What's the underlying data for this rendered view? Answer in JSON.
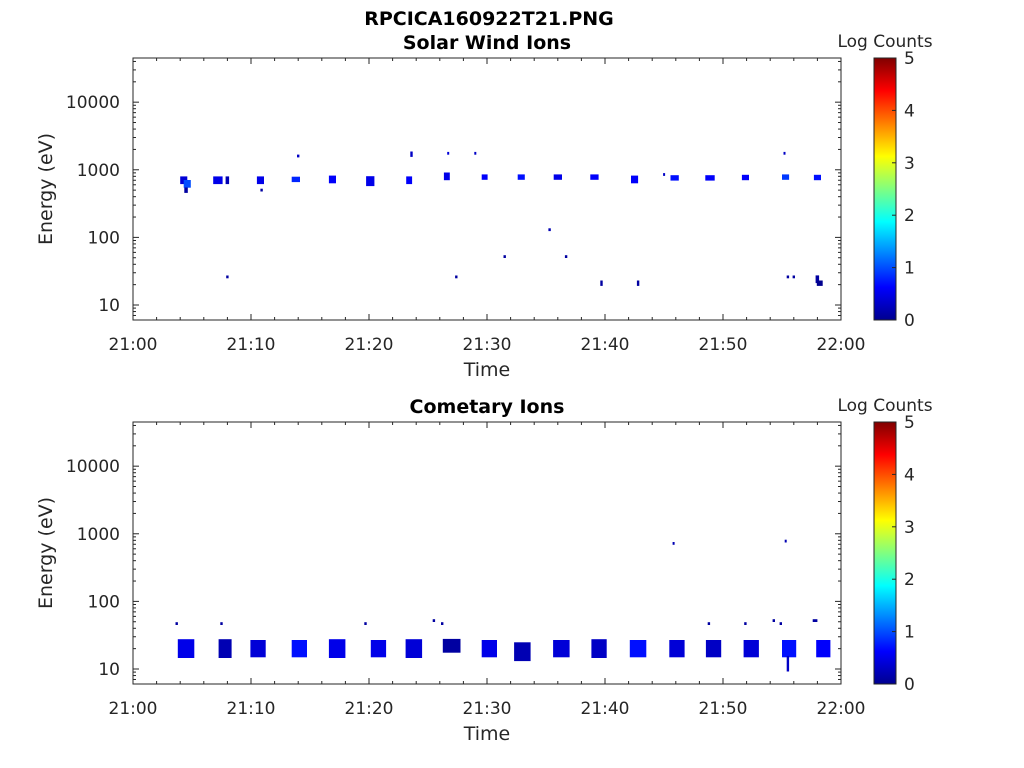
{
  "figure_title": "RPCICA160922T21.PNG",
  "colors": {
    "colormap": [
      "#00008f",
      "#0000ff",
      "#0080ff",
      "#00ffff",
      "#80ff80",
      "#ffff00",
      "#ff8000",
      "#ff0000",
      "#800000"
    ],
    "axis": "#262626"
  },
  "chart_data": [
    {
      "type": "heatmap",
      "title": "Solar Wind Ions",
      "xlabel": "Time",
      "ylabel": "Energy (eV)",
      "x_ticks": [
        "21:00",
        "21:10",
        "21:20",
        "21:30",
        "21:40",
        "21:50",
        "22:00"
      ],
      "x_range_min": [
        0,
        60
      ],
      "y_scale": "log",
      "y_ticks": [
        10,
        100,
        1000,
        10000
      ],
      "y_tick_labels": [
        "10",
        "100",
        "1000",
        "10000"
      ],
      "ylim": [
        6,
        45000
      ],
      "colorbar": {
        "label": "Log Counts",
        "range": [
          0,
          5
        ],
        "ticks": [
          "0",
          "1",
          "2",
          "3",
          "4",
          "5"
        ]
      },
      "cells": [
        [
          4.3,
          700,
          0.6,
          1.3,
          0.4
        ],
        [
          4.6,
          620,
          0.6,
          1.3,
          1.0
        ],
        [
          4.5,
          500,
          0.3,
          1.2,
          0.1
        ],
        [
          7.2,
          700,
          0.8,
          1.3,
          0.5
        ],
        [
          8.0,
          700,
          0.3,
          1.3,
          0.2
        ],
        [
          8.0,
          26,
          0.2,
          1.1,
          0.1
        ],
        [
          10.8,
          700,
          0.6,
          1.3,
          0.5
        ],
        [
          10.9,
          500,
          0.2,
          1.1,
          0.1
        ],
        [
          13.8,
          720,
          0.7,
          1.2,
          0.8
        ],
        [
          14.0,
          1600,
          0.2,
          1.1,
          0.3
        ],
        [
          16.9,
          720,
          0.6,
          1.3,
          0.6
        ],
        [
          20.1,
          680,
          0.7,
          1.4,
          0.5
        ],
        [
          23.4,
          700,
          0.5,
          1.3,
          0.6
        ],
        [
          23.6,
          1700,
          0.2,
          1.2,
          0.3
        ],
        [
          26.6,
          800,
          0.5,
          1.3,
          0.5
        ],
        [
          26.7,
          1750,
          0.15,
          1.1,
          0.4
        ],
        [
          27.4,
          26,
          0.2,
          1.1,
          0.1
        ],
        [
          29.0,
          1750,
          0.15,
          1.1,
          0.3
        ],
        [
          29.8,
          780,
          0.5,
          1.2,
          0.6
        ],
        [
          31.5,
          52,
          0.2,
          1.1,
          0.1
        ],
        [
          32.9,
          780,
          0.6,
          1.2,
          0.7
        ],
        [
          35.3,
          130,
          0.2,
          1.1,
          0.2
        ],
        [
          36.0,
          780,
          0.7,
          1.2,
          0.5
        ],
        [
          36.7,
          52,
          0.2,
          1.1,
          0.1
        ],
        [
          39.1,
          780,
          0.7,
          1.2,
          0.6
        ],
        [
          39.7,
          21,
          0.2,
          1.2,
          0.1
        ],
        [
          42.5,
          720,
          0.6,
          1.3,
          0.6
        ],
        [
          42.8,
          21,
          0.2,
          1.2,
          0.1
        ],
        [
          45.0,
          850,
          0.15,
          1.1,
          0.3
        ],
        [
          45.9,
          760,
          0.7,
          1.2,
          0.7
        ],
        [
          48.9,
          760,
          0.8,
          1.2,
          0.6
        ],
        [
          51.9,
          770,
          0.6,
          1.2,
          0.6
        ],
        [
          55.2,
          1750,
          0.15,
          1.1,
          0.3
        ],
        [
          55.3,
          780,
          0.6,
          1.2,
          0.9
        ],
        [
          55.5,
          26,
          0.2,
          1.1,
          0.1
        ],
        [
          56.0,
          26,
          0.2,
          1.1,
          0.1
        ],
        [
          58.0,
          770,
          0.6,
          1.2,
          0.7
        ],
        [
          58.0,
          24,
          0.3,
          1.3,
          0.1
        ],
        [
          58.2,
          21,
          0.5,
          1.2,
          0.0
        ]
      ]
    },
    {
      "type": "heatmap",
      "title": "Cometary Ions",
      "xlabel": "Time",
      "ylabel": "Energy (eV)",
      "x_ticks": [
        "21:00",
        "21:10",
        "21:20",
        "21:30",
        "21:40",
        "21:50",
        "22:00"
      ],
      "x_range_min": [
        0,
        60
      ],
      "y_scale": "log",
      "y_ticks": [
        10,
        100,
        1000,
        10000
      ],
      "y_tick_labels": [
        "10",
        "100",
        "1000",
        "10000"
      ],
      "ylim": [
        6,
        45000
      ],
      "colorbar": {
        "label": "Log Counts",
        "range": [
          0,
          5
        ],
        "ticks": [
          "0",
          "1",
          "2",
          "3",
          "4",
          "5"
        ]
      },
      "cells": [
        [
          3.7,
          47,
          0.2,
          1.1,
          0.1
        ],
        [
          4.5,
          20,
          1.4,
          1.9,
          0.5
        ],
        [
          7.5,
          47,
          0.2,
          1.1,
          0.1
        ],
        [
          7.8,
          20,
          1.1,
          1.9,
          0.2
        ],
        [
          10.6,
          20,
          1.3,
          1.8,
          0.4
        ],
        [
          14.1,
          20,
          1.3,
          1.8,
          0.7
        ],
        [
          17.3,
          20,
          1.4,
          1.9,
          0.5
        ],
        [
          19.7,
          47,
          0.2,
          1.1,
          0.1
        ],
        [
          20.8,
          20,
          1.3,
          1.8,
          0.5
        ],
        [
          23.8,
          20,
          1.4,
          1.9,
          0.4
        ],
        [
          25.5,
          52,
          0.2,
          1.1,
          0.1
        ],
        [
          26.2,
          47,
          0.2,
          1.1,
          0.1
        ],
        [
          27.0,
          22,
          1.5,
          1.6,
          0.1
        ],
        [
          30.2,
          20,
          1.3,
          1.8,
          0.5
        ],
        [
          33.0,
          18,
          1.4,
          1.9,
          0.2
        ],
        [
          36.3,
          20,
          1.4,
          1.8,
          0.4
        ],
        [
          39.5,
          20,
          1.3,
          1.9,
          0.3
        ],
        [
          42.8,
          20,
          1.4,
          1.8,
          0.7
        ],
        [
          45.8,
          720,
          0.15,
          1.1,
          0.2
        ],
        [
          46.1,
          20,
          1.3,
          1.8,
          0.4
        ],
        [
          48.8,
          47,
          0.2,
          1.1,
          0.1
        ],
        [
          49.2,
          20,
          1.3,
          1.8,
          0.3
        ],
        [
          51.9,
          47,
          0.2,
          1.1,
          0.1
        ],
        [
          52.4,
          20,
          1.3,
          1.8,
          0.4
        ],
        [
          54.3,
          52,
          0.2,
          1.1,
          0.1
        ],
        [
          54.9,
          47,
          0.2,
          1.1,
          0.1
        ],
        [
          55.3,
          780,
          0.15,
          1.1,
          0.2
        ],
        [
          55.6,
          20,
          1.2,
          1.8,
          0.7
        ],
        [
          55.5,
          12,
          0.2,
          1.7,
          0.3
        ],
        [
          57.8,
          52,
          0.4,
          1.1,
          0.1
        ],
        [
          58.5,
          20,
          1.2,
          1.8,
          0.6
        ]
      ]
    }
  ]
}
